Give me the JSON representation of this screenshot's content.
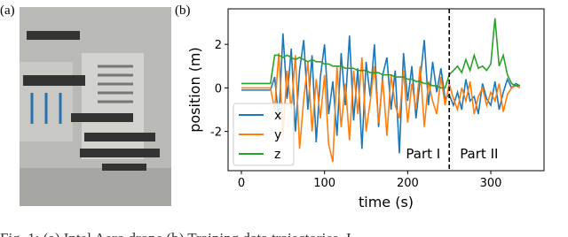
{
  "panel_labels": [
    "(a)",
    "(b)"
  ],
  "caption": "Fig. 1: (a) Intel Aero drone     (b) Training data trajectories. I",
  "chart_data": {
    "type": "line",
    "xlabel": "time (s)",
    "ylabel": "position (m)",
    "xlim": [
      -16,
      364
    ],
    "ylim": [
      -3.8,
      3.63
    ],
    "xticks": [
      0,
      100,
      200,
      300
    ],
    "yticks": [
      -2,
      0,
      2
    ],
    "legend": "lower left",
    "split_x": 250,
    "annotations": [
      "Part I",
      "Part II"
    ],
    "x": [
      0,
      5,
      10,
      15,
      20,
      25,
      30,
      35,
      40,
      45,
      50,
      55,
      60,
      65,
      70,
      75,
      80,
      85,
      90,
      95,
      100,
      105,
      110,
      115,
      120,
      125,
      130,
      135,
      140,
      145,
      150,
      155,
      160,
      165,
      170,
      175,
      180,
      185,
      190,
      195,
      200,
      205,
      210,
      215,
      220,
      225,
      230,
      235,
      240,
      245,
      250,
      255,
      260,
      265,
      270,
      275,
      280,
      285,
      290,
      295,
      300,
      305,
      310,
      315,
      320,
      325,
      330,
      335
    ],
    "series": [
      {
        "name": "x",
        "color": "#1f77b4",
        "values": [
          -0.1,
          -0.1,
          -0.1,
          -0.1,
          -0.1,
          -0.1,
          -0.1,
          -0.1,
          0.5,
          -1.5,
          2.5,
          -0.5,
          1.8,
          -2.0,
          0.8,
          2.2,
          -1.0,
          1.5,
          -2.5,
          0.5,
          2.0,
          -1.2,
          0.3,
          -2.2,
          1.6,
          -0.8,
          2.4,
          -1.5,
          0.9,
          -2.8,
          1.2,
          -0.4,
          2.0,
          -1.8,
          0.6,
          1.4,
          -1.0,
          0.8,
          -3.0,
          1.6,
          -0.6,
          1.0,
          -1.4,
          0.4,
          2.2,
          -0.8,
          1.2,
          -0.2,
          0.9,
          -0.5,
          -0.3,
          -0.8,
          -0.2,
          -1.0,
          0.4,
          -0.6,
          -0.4,
          -1.2,
          0.2,
          -0.5,
          -0.8,
          0.3,
          -1.0,
          -0.2,
          0.4,
          0.0,
          0.2,
          0.1
        ]
      },
      {
        "name": "y",
        "color": "#ff7f0e",
        "values": [
          0.0,
          0.0,
          0.0,
          0.0,
          0.0,
          0.0,
          0.0,
          0.0,
          -1.0,
          1.6,
          -2.2,
          0.8,
          -1.0,
          1.5,
          -2.8,
          -0.5,
          1.2,
          -2.0,
          0.4,
          -1.4,
          0.6,
          -2.6,
          -3.4,
          1.0,
          -1.8,
          0.2,
          -2.4,
          0.8,
          -1.2,
          1.4,
          -2.0,
          -0.6,
          1.0,
          -1.6,
          0.4,
          -2.2,
          0.6,
          -0.8,
          -1.4,
          0.8,
          -1.6,
          0.2,
          -1.0,
          1.0,
          -1.8,
          0.3,
          -0.6,
          -1.2,
          0.5,
          -0.8,
          0.2,
          -0.5,
          -1.0,
          0.0,
          -0.6,
          0.3,
          -1.2,
          -0.4,
          0.0,
          -0.8,
          -0.2,
          -0.6,
          0.2,
          -1.1,
          -0.3,
          0.0,
          0.1,
          0.0
        ]
      },
      {
        "name": "z",
        "color": "#2ca02c",
        "values": [
          0.2,
          0.2,
          0.2,
          0.2,
          0.2,
          0.2,
          0.2,
          0.2,
          1.5,
          1.5,
          1.4,
          1.5,
          1.4,
          1.3,
          1.4,
          1.3,
          1.2,
          1.3,
          1.2,
          1.2,
          1.1,
          1.1,
          1.0,
          1.0,
          1.0,
          0.9,
          0.9,
          0.9,
          0.8,
          0.8,
          0.8,
          0.7,
          0.7,
          0.7,
          0.6,
          0.6,
          0.6,
          0.5,
          0.5,
          0.5,
          0.4,
          0.4,
          0.3,
          0.3,
          0.2,
          0.2,
          0.1,
          0.1,
          0.0,
          0.0,
          0.6,
          0.8,
          1.0,
          0.7,
          1.3,
          0.8,
          1.5,
          0.9,
          1.0,
          0.8,
          1.1,
          3.2,
          1.0,
          1.5,
          0.6,
          0.2,
          0.1,
          0.1
        ]
      }
    ]
  }
}
